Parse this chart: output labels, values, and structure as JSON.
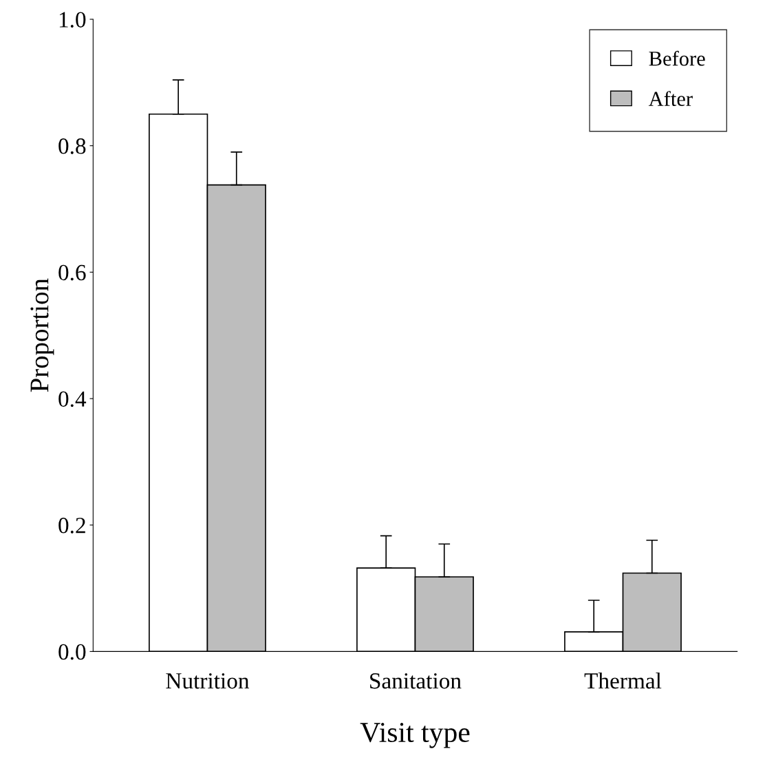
{
  "chart_data": {
    "type": "bar",
    "xlabel": "Visit type",
    "ylabel": "Proportion",
    "categories": [
      "Nutrition",
      "Sanitation",
      "Thermal"
    ],
    "series": [
      {
        "name": "Before",
        "color": "#ffffff",
        "values": [
          0.85,
          0.132,
          0.031
        ],
        "errors": [
          [
            0.85,
            0.904
          ],
          [
            0.132,
            0.183
          ],
          [
            0.031,
            0.081
          ]
        ]
      },
      {
        "name": "After",
        "color": "#bdbdbd",
        "values": [
          0.738,
          0.118,
          0.124
        ],
        "errors": [
          [
            0.738,
            0.79
          ],
          [
            0.118,
            0.17
          ],
          [
            0.124,
            0.176
          ]
        ]
      }
    ],
    "ylim": [
      0,
      1.0
    ],
    "yticks": [
      {
        "value": 0,
        "label": "0.0"
      },
      {
        "value": 0.2,
        "label": "0.2"
      },
      {
        "value": 0.4,
        "label": "0.4"
      },
      {
        "value": 0.6,
        "label": "0.6"
      },
      {
        "value": 0.8,
        "label": "0.8"
      },
      {
        "value": 1.0,
        "label": "1.0"
      }
    ],
    "grid": false,
    "legend": "top right"
  }
}
